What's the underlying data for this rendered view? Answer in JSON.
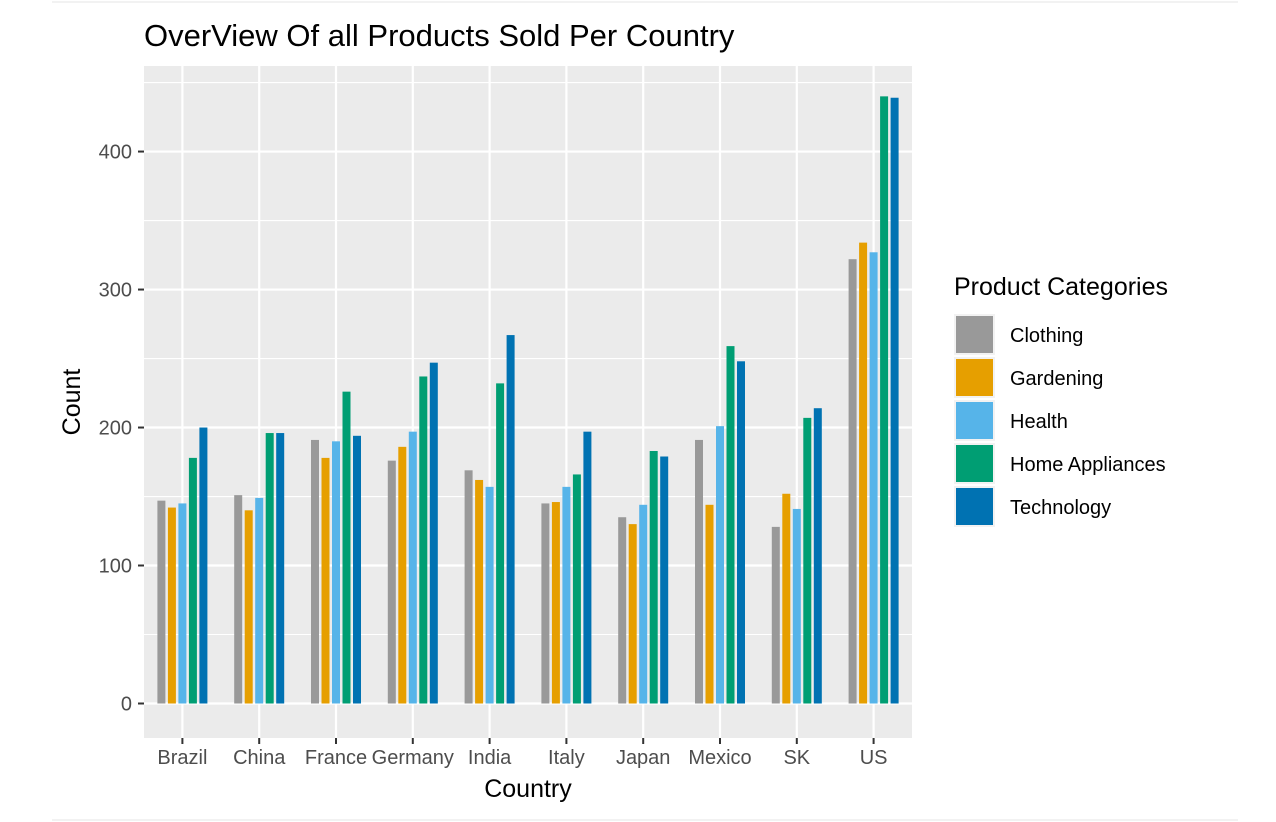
{
  "chart_data": {
    "type": "bar",
    "title": "OverView Of all Products Sold Per Country",
    "xlabel": "Country",
    "ylabel": "Count",
    "ylim": [
      -25,
      462
    ],
    "yticks": [
      0,
      100,
      200,
      300,
      400
    ],
    "grid": true,
    "legend_position": "right",
    "legend_title": "Product Categories",
    "categories": [
      "Brazil",
      "China",
      "France",
      "Germany",
      "India",
      "Italy",
      "Japan",
      "Mexico",
      "SK",
      "US"
    ],
    "series": [
      {
        "name": "Clothing",
        "color": "#999999",
        "values": [
          147,
          151,
          191,
          176,
          169,
          145,
          135,
          191,
          128,
          322
        ]
      },
      {
        "name": "Gardening",
        "color": "#E69F00",
        "values": [
          142,
          140,
          178,
          186,
          162,
          146,
          130,
          144,
          152,
          334
        ]
      },
      {
        "name": "Health",
        "color": "#56B4E9",
        "values": [
          145,
          149,
          190,
          197,
          157,
          157,
          144,
          201,
          141,
          327
        ]
      },
      {
        "name": "Home Appliances",
        "color": "#009E73",
        "values": [
          178,
          196,
          226,
          237,
          232,
          166,
          183,
          259,
          207,
          440
        ]
      },
      {
        "name": "Technology",
        "color": "#0072B2",
        "values": [
          200,
          196,
          194,
          247,
          267,
          197,
          179,
          248,
          214,
          439
        ]
      }
    ],
    "panel_background": "#EBEBEB",
    "grid_color": "#FFFFFF"
  }
}
